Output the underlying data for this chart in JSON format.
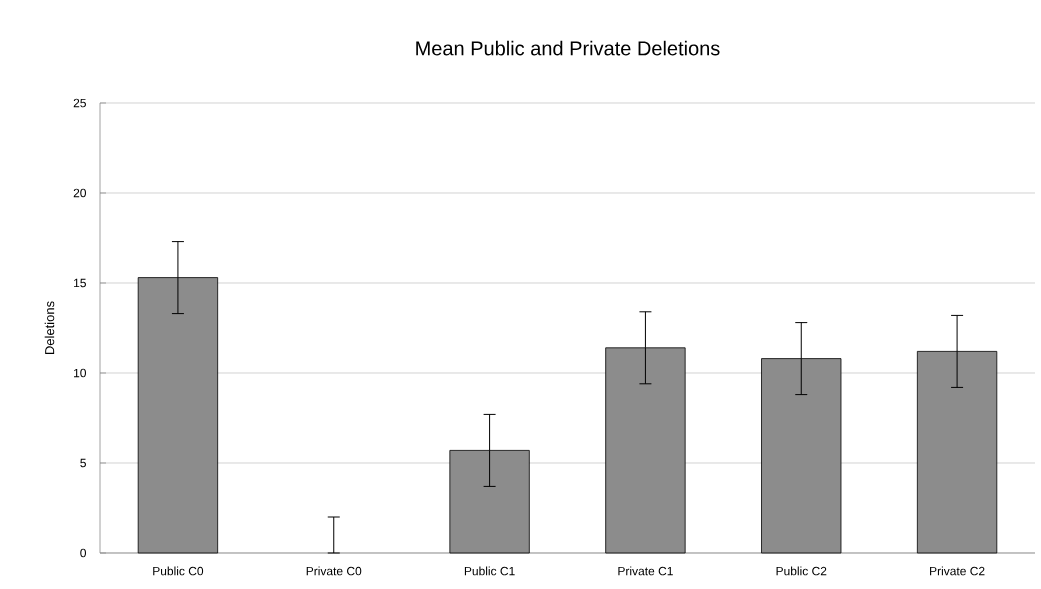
{
  "chart_data": {
    "type": "bar",
    "title": "Mean Public and Private Deletions",
    "ylabel": "Deletions",
    "categories": [
      "Public C0",
      "Private C0",
      "Public C1",
      "Private C1",
      "Public C2",
      "Private C2"
    ],
    "values": [
      15.3,
      0,
      5.7,
      11.4,
      10.8,
      11.2
    ],
    "errors": [
      2.0,
      [
        0,
        2.0
      ],
      2.0,
      2.0,
      2.0,
      2.0
    ],
    "color": "#8c8c8c",
    "ylim": [
      0,
      25
    ],
    "yticks": [
      0,
      5,
      10,
      15,
      20,
      25
    ],
    "grid": "y",
    "legend": false
  }
}
